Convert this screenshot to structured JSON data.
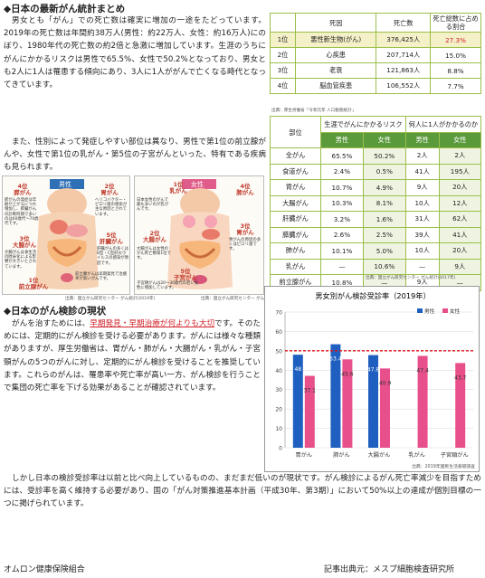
{
  "section1": {
    "heading": "◆日本の最新がん統計まとめ",
    "p1": "男女とも「がん」での死亡数は確実に増加の一途をたどっています。2019年の死亡数は年間約38万人(男性：約22万人、女性：約16万人)にのぼり、1980年代の死亡数の約2倍と急激に増加しています。生涯のうちにがんにかかるリスクは男性で65.5%、女性で50.2%となっており、男女とも2人に1人は罹患する傾向にあり、3人に1人ががんで亡くなる時代となってきています。",
    "p2": "また、性別によって発症しやすい部位は異なり、男性で第1位の前立腺がんや、女性で第1位の乳がん・第5位の子宮がんといった、特有である疾病も見られます。"
  },
  "table1": {
    "headers": [
      "",
      "死因",
      "死亡数",
      "死亡総数に占める割合"
    ],
    "rows": [
      [
        "1位",
        "悪性新生物(がん)",
        "376,425人",
        "27.3%"
      ],
      [
        "2位",
        "心疾患",
        "207,714人",
        "15.0%"
      ],
      [
        "3位",
        "老衰",
        "121,863人",
        "8.8%"
      ],
      [
        "4位",
        "脳血管疾患",
        "106,552人",
        "7.7%"
      ]
    ],
    "source": "出典：厚生労働省「令和元年 人口動態統計」"
  },
  "table2": {
    "col_site": "部位",
    "group1": "生涯でがんにかかるリスク",
    "group2": "何人に1人がかかるのか",
    "male": "男性",
    "female": "女性",
    "rows": [
      [
        "全がん",
        "65.5%",
        "50.2%",
        "2人",
        "2人"
      ],
      [
        "食道がん",
        "2.4%",
        "0.5%",
        "41人",
        "195人"
      ],
      [
        "胃がん",
        "10.7%",
        "4.9%",
        "9人",
        "20人"
      ],
      [
        "大腸がん",
        "10.3%",
        "8.1%",
        "10人",
        "12人"
      ],
      [
        "肝臓がん",
        "3.2%",
        "1.6%",
        "31人",
        "62人"
      ],
      [
        "膵臓がん",
        "2.6%",
        "2.5%",
        "39人",
        "41人"
      ],
      [
        "肺がん",
        "10.1%",
        "5.0%",
        "10人",
        "20人"
      ],
      [
        "乳がん",
        "—",
        "10.6%",
        "—",
        "9人"
      ],
      [
        "前立腺がん",
        "10.8%",
        "—",
        "9人",
        "—"
      ]
    ],
    "source": "出典：国立がん研究センター がん統計(2017年)"
  },
  "illustration_male": {
    "label": "男性",
    "t4": "4位\n膵がん",
    "t2": "2位\n胃がん",
    "t3": "3位\n大腸がん",
    "t5": "5位\n肝臓がん",
    "t1": "1位\n前立腺がん",
    "n4": "膵がんの発症は年齢が上がるにつれ増加し、膵臓がんの診断時期で多いのは60歳代〜70歳代です。",
    "n2": "ヘリコバクター・ピロリ菌の感染が主な原因とされています。",
    "n3": "大腸がんは食生活の欧米化による影響が大きいとされています。",
    "n5": "肝臓がんの多くはB型・C型肝炎ウイルスの感染が原因です。",
    "n1": "前立腺がんは早期発見で治癒率が高いがんです。",
    "source": "出典：国立がん研究センター がん統計(2019年)"
  },
  "illustration_female": {
    "label": "女性",
    "t1": "1位\n乳がん",
    "t4": "4位\n肺がん",
    "t2": "2位\n大腸がん",
    "t3": "3位\n胃がん",
    "t5": "5位\n子宮がん",
    "n1": "日本女性のがんで最も多いのが乳がんです。",
    "n2": "大腸がんは女性のがん死亡数第1位です。",
    "n3": "胃がんの原因の多くはピロリ菌です。",
    "n5": "子宮頸がんは20〜30歳代の若い女性に増加しています。",
    "source": "出典：国立がん研究センター がん統計(2019年)"
  },
  "section2": {
    "heading": "◆日本のがん検診の現状",
    "p1_before": "がんを治すためには、",
    "p1_hl": "早期発見・早期治療が何よりも大切",
    "p1_after": "です。そのためには、定期的にがん検診を受ける必要があります。がんには様々な種類がありますが、厚生労働省は、胃がん・肺がん・大腸がん・乳がん・子宮頸がんの5つのがんに対し、定期的にがん検診を受けることを推奨しています。これらのがんは、罹患率や死亡率が高い一方、がん検診を行うことで集団の死亡率を下げる効果があることが確認されています。",
    "p2": "しかし日本の検診受診率は以前と比べ向上しているものの、まだまだ低いのが現状です。がん検診によるがん死亡率減少を目指すためには、受診率を高く維持する必要があり、国の「がん対策推進基本計画（平成30年、第3期）」において50%以上の達成が個別目標の一つに掲げられています。"
  },
  "chart_data": {
    "type": "bar",
    "title": "男女別がん検診受診率（2019年）",
    "categories": [
      "胃がん",
      "肺がん",
      "大腸がん",
      "乳がん",
      "子宮頸がん"
    ],
    "series": [
      {
        "name": "男性",
        "color": "#1f5fbf",
        "values": [
          48.0,
          53.4,
          47.8,
          null,
          null
        ]
      },
      {
        "name": "女性",
        "color": "#e8508c",
        "values": [
          37.1,
          45.6,
          40.9,
          47.4,
          43.7
        ]
      }
    ],
    "ylim": [
      0,
      70
    ],
    "yticks": [
      0,
      10,
      20,
      30,
      40,
      50,
      60,
      70
    ],
    "target_line": 50,
    "legend": "top-right",
    "source": "出典：2019年国民生活基礎調査"
  },
  "footer": {
    "left": "オムロン健康保険組合",
    "right": "記事出典元：メスプ細胞検査研究所"
  }
}
